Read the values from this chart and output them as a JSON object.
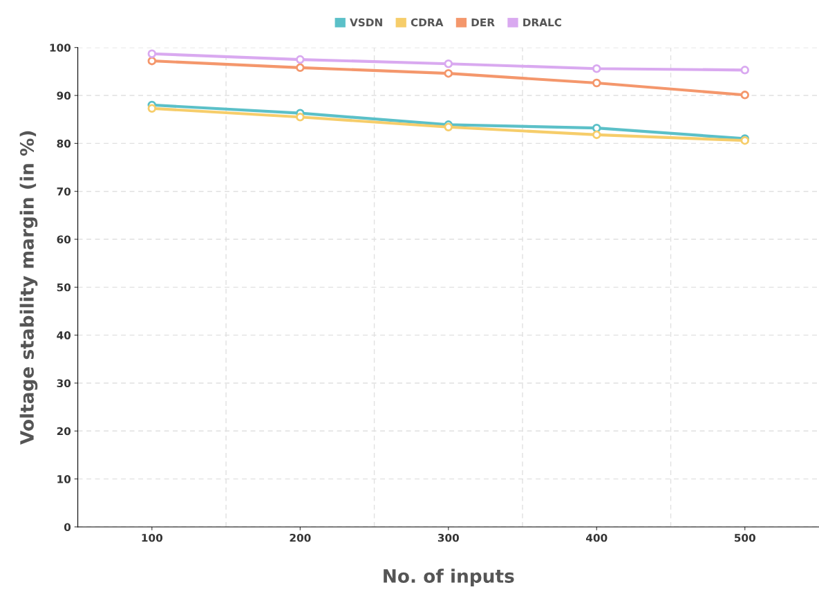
{
  "chart_data": {
    "type": "line",
    "xlabel": "No. of inputs",
    "ylabel": "Voltage stability margin (in %)",
    "categories": [
      "100",
      "200",
      "300",
      "400",
      "500"
    ],
    "series": [
      {
        "name": "VSDN",
        "color": "#5bc0c8",
        "values": [
          88.0,
          86.3,
          83.9,
          83.2,
          81.0
        ]
      },
      {
        "name": "CDRA",
        "color": "#f6cd6a",
        "values": [
          87.3,
          85.5,
          83.4,
          81.8,
          80.6
        ]
      },
      {
        "name": "DER",
        "color": "#f4976c",
        "values": [
          97.2,
          95.8,
          94.6,
          92.6,
          90.1
        ]
      },
      {
        "name": "DRALC",
        "color": "#d9a9f0",
        "values": [
          98.7,
          97.5,
          96.6,
          95.6,
          95.3
        ]
      }
    ],
    "ylim": [
      0,
      100
    ],
    "yticks": [
      0,
      10,
      20,
      30,
      40,
      50,
      60,
      70,
      80,
      90,
      100
    ],
    "grid": true,
    "legend": "top",
    "marker": "circle",
    "line_style": "solid"
  }
}
